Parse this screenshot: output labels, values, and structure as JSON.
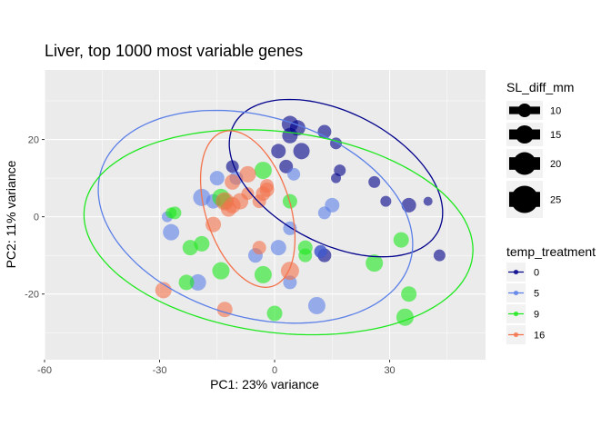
{
  "chart_data": {
    "type": "scatter",
    "title": "Liver, top 1000 most variable genes",
    "xlabel": "PC1: 23% variance",
    "ylabel": "PC2: 11% variance",
    "xlim": [
      -60,
      55
    ],
    "ylim": [
      -37,
      38
    ],
    "xticks": [
      -60,
      -30,
      0,
      30
    ],
    "yticks": [
      -20,
      0,
      20
    ],
    "x_tick_labels": [
      "-60",
      "-30",
      "0",
      "30"
    ],
    "y_tick_labels": [
      "-20",
      "0",
      "20"
    ],
    "grid": true,
    "legend_placement": "right",
    "size_legend": {
      "title": "SL_diff_mm",
      "values": [
        10,
        15,
        20,
        25
      ],
      "labels": [
        "10",
        "15",
        "20",
        "25"
      ]
    },
    "color_legend": {
      "title": "temp_treatment",
      "labels": [
        "0",
        "5",
        "9",
        "16"
      ]
    },
    "series": [
      {
        "name": "0",
        "color": "#00008B",
        "ellipse": {
          "cx": 16,
          "cy": 10,
          "rx": 30,
          "ry": 17,
          "angle_deg": -27
        },
        "points": [
          {
            "x": 4,
            "y": 24,
            "size": 18
          },
          {
            "x": 6,
            "y": 23,
            "size": 17
          },
          {
            "x": 4,
            "y": 21,
            "size": 17
          },
          {
            "x": 13,
            "y": 22,
            "size": 15
          },
          {
            "x": 16,
            "y": 19,
            "size": 13
          },
          {
            "x": 7,
            "y": 17,
            "size": 18
          },
          {
            "x": 1,
            "y": 17,
            "size": 16
          },
          {
            "x": 3,
            "y": 13,
            "size": 15
          },
          {
            "x": 17,
            "y": 12,
            "size": 13
          },
          {
            "x": 16,
            "y": 10,
            "size": 11
          },
          {
            "x": -11,
            "y": 13,
            "size": 14
          },
          {
            "x": 26,
            "y": 9,
            "size": 13
          },
          {
            "x": 29,
            "y": 4,
            "size": 12
          },
          {
            "x": 40,
            "y": 4,
            "size": 10
          },
          {
            "x": 35,
            "y": 3,
            "size": 16
          },
          {
            "x": 43,
            "y": -10,
            "size": 13
          },
          {
            "x": 12,
            "y": -9,
            "size": 14
          },
          {
            "x": 13,
            "y": -10,
            "size": 15
          }
        ]
      },
      {
        "name": "5",
        "color": "#5B7FE8",
        "ellipse": {
          "cx": -5,
          "cy": 0,
          "rx": 42,
          "ry": 26,
          "angle_deg": -16
        },
        "points": [
          {
            "x": -15,
            "y": 10,
            "size": 16
          },
          {
            "x": -10,
            "y": 10,
            "size": 15
          },
          {
            "x": -19,
            "y": 5,
            "size": 19
          },
          {
            "x": -16,
            "y": 4,
            "size": 16
          },
          {
            "x": -27,
            "y": -4,
            "size": 18
          },
          {
            "x": 5,
            "y": 11,
            "size": 14
          },
          {
            "x": 13,
            "y": 1,
            "size": 14
          },
          {
            "x": 15,
            "y": 3,
            "size": 16
          },
          {
            "x": 4,
            "y": -3,
            "size": 15
          },
          {
            "x": 1,
            "y": -8,
            "size": 17
          },
          {
            "x": -5,
            "y": -10,
            "size": 16
          },
          {
            "x": 4,
            "y": -17,
            "size": 15
          },
          {
            "x": 11,
            "y": -23,
            "size": 19
          },
          {
            "x": 12,
            "y": -9,
            "size": 14
          },
          {
            "x": -20,
            "y": -17,
            "size": 18
          },
          {
            "x": -28,
            "y": 0,
            "size": 12
          }
        ]
      },
      {
        "name": "9",
        "color": "#1EE81E",
        "ellipse": {
          "cx": 1,
          "cy": -4,
          "rx": 51,
          "ry": 26,
          "angle_deg": -7
        },
        "points": [
          {
            "x": -3,
            "y": 12,
            "size": 19
          },
          {
            "x": -14,
            "y": 5,
            "size": 19
          },
          {
            "x": -13,
            "y": 4,
            "size": 17
          },
          {
            "x": -26,
            "y": 1,
            "size": 14
          },
          {
            "x": -27,
            "y": 1,
            "size": 12
          },
          {
            "x": -22,
            "y": -8,
            "size": 17
          },
          {
            "x": -19,
            "y": -7,
            "size": 17
          },
          {
            "x": -23,
            "y": -17,
            "size": 17
          },
          {
            "x": -14,
            "y": -14,
            "size": 19
          },
          {
            "x": -3,
            "y": -15,
            "size": 19
          },
          {
            "x": 4,
            "y": 4,
            "size": 16
          },
          {
            "x": 8,
            "y": -8,
            "size": 16
          },
          {
            "x": 8,
            "y": -10,
            "size": 15
          },
          {
            "x": 26,
            "y": -12,
            "size": 19
          },
          {
            "x": 33,
            "y": -6,
            "size": 17
          },
          {
            "x": 35,
            "y": -20,
            "size": 17
          },
          {
            "x": 34,
            "y": -26,
            "size": 19
          },
          {
            "x": 0,
            "y": -25,
            "size": 17
          }
        ]
      },
      {
        "name": "16",
        "color": "#F4724B",
        "ellipse": {
          "cx": -7,
          "cy": 2,
          "rx": 21,
          "ry": 11,
          "angle_deg": -72
        },
        "points": [
          {
            "x": -7,
            "y": 11,
            "size": 18
          },
          {
            "x": -11,
            "y": 9,
            "size": 17
          },
          {
            "x": -13,
            "y": 4,
            "size": 20
          },
          {
            "x": -9,
            "y": 4,
            "size": 18
          },
          {
            "x": -3,
            "y": 6,
            "size": 16
          },
          {
            "x": -2,
            "y": 8,
            "size": 15
          },
          {
            "x": -2,
            "y": 7,
            "size": 16
          },
          {
            "x": -7,
            "y": 6,
            "size": 14
          },
          {
            "x": -4,
            "y": 4,
            "size": 15
          },
          {
            "x": -11,
            "y": 3,
            "size": 18
          },
          {
            "x": -12,
            "y": 2,
            "size": 17
          },
          {
            "x": -16,
            "y": -2,
            "size": 17
          },
          {
            "x": -4,
            "y": -8,
            "size": 15
          },
          {
            "x": 4,
            "y": -14,
            "size": 20
          },
          {
            "x": -29,
            "y": -19,
            "size": 18
          },
          {
            "x": -13,
            "y": -24,
            "size": 17
          }
        ]
      }
    ]
  }
}
